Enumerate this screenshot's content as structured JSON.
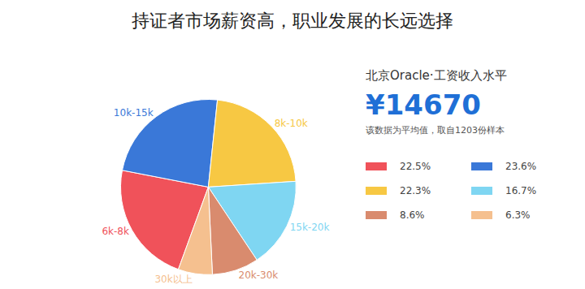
{
  "chart_data": {
    "type": "pie",
    "title": "持证者市场薪资高，职业发展的长远选择",
    "categories": [
      "6k-8k",
      "10k-15k",
      "8k-10k",
      "15k-20k",
      "20k-30k",
      "30k以上"
    ],
    "values": [
      22.5,
      23.6,
      22.3,
      16.7,
      8.6,
      6.3
    ],
    "value_labels": [
      "22.5%",
      "23.6%",
      "22.3%",
      "16.7%",
      "8.6%",
      "6.3%"
    ],
    "colors": [
      "#f0525a",
      "#3a78d8",
      "#f7c843",
      "#7fd6f2",
      "#d98b6e",
      "#f5c08f"
    ],
    "annotations": [
      "北京Oracle·工资收入水平",
      "¥14670",
      "该数据为平均值，取自1203份样本"
    ]
  }
}
